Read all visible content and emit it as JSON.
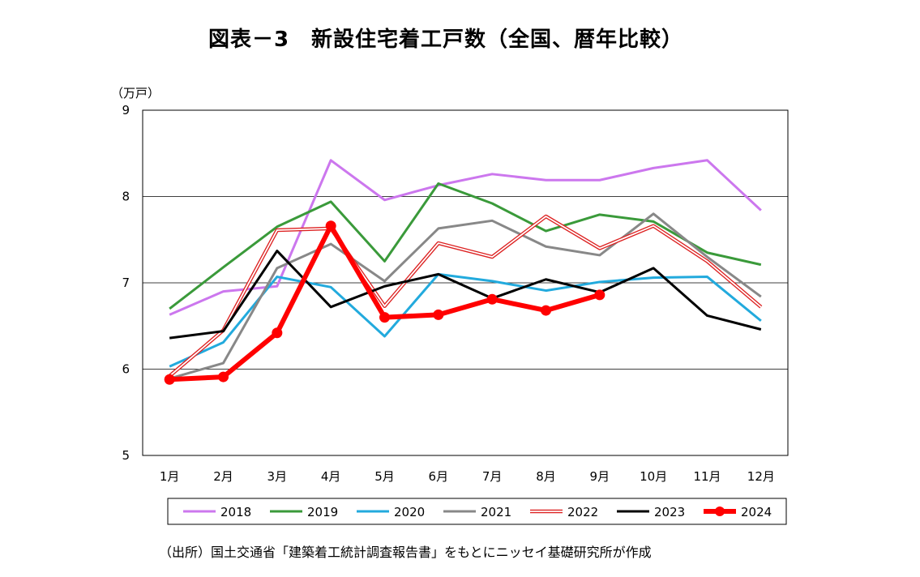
{
  "title": "図表－3　新設住宅着工戸数（全国、暦年比較）",
  "source": "（出所）国土交通省「建築着工統計調査報告書」をもとにニッセイ基礎研究所が作成",
  "chart_data": {
    "type": "line",
    "ylabel": "（万戸）",
    "ylim": [
      5,
      9
    ],
    "yticks": [
      "5",
      "6",
      "7",
      "8",
      "9"
    ],
    "grid": true,
    "legend_position": "bottom",
    "categories": [
      "1月",
      "2月",
      "3月",
      "4月",
      "5月",
      "6月",
      "7月",
      "8月",
      "9月",
      "10月",
      "11月",
      "12月"
    ],
    "series": [
      {
        "name": "2018",
        "color": "#cc77ee",
        "style": "solid",
        "values": [
          6.63,
          6.9,
          6.96,
          8.42,
          7.96,
          8.13,
          8.26,
          8.19,
          8.19,
          8.33,
          8.42,
          7.84
        ]
      },
      {
        "name": "2019",
        "color": "#3a9a3a",
        "style": "solid",
        "values": [
          6.7,
          7.18,
          7.65,
          7.94,
          7.25,
          8.15,
          7.92,
          7.6,
          7.79,
          7.71,
          7.35,
          7.21
        ]
      },
      {
        "name": "2020",
        "color": "#22aadd",
        "style": "solid",
        "values": [
          6.03,
          6.31,
          7.07,
          6.95,
          6.38,
          7.1,
          7.02,
          6.91,
          7.01,
          7.06,
          7.07,
          6.56
        ]
      },
      {
        "name": "2021",
        "color": "#888888",
        "style": "solid",
        "values": [
          5.89,
          6.07,
          7.17,
          7.45,
          7.02,
          7.63,
          7.72,
          7.42,
          7.32,
          7.8,
          7.3,
          6.84
        ]
      },
      {
        "name": "2022",
        "color": "#dd2222",
        "style": "double",
        "values": [
          5.92,
          6.45,
          7.61,
          7.63,
          6.73,
          7.46,
          7.3,
          7.77,
          7.4,
          7.66,
          7.25,
          6.72
        ]
      },
      {
        "name": "2023",
        "color": "#000000",
        "style": "solid",
        "values": [
          6.36,
          6.44,
          7.37,
          6.72,
          6.96,
          7.1,
          6.82,
          7.04,
          6.89,
          7.17,
          6.62,
          6.46
        ]
      },
      {
        "name": "2024",
        "color": "#ff0000",
        "style": "bold-marker",
        "values": [
          5.88,
          5.91,
          6.42,
          7.66,
          6.6,
          6.63,
          6.81,
          6.68,
          6.86,
          null,
          null,
          null
        ]
      }
    ]
  }
}
